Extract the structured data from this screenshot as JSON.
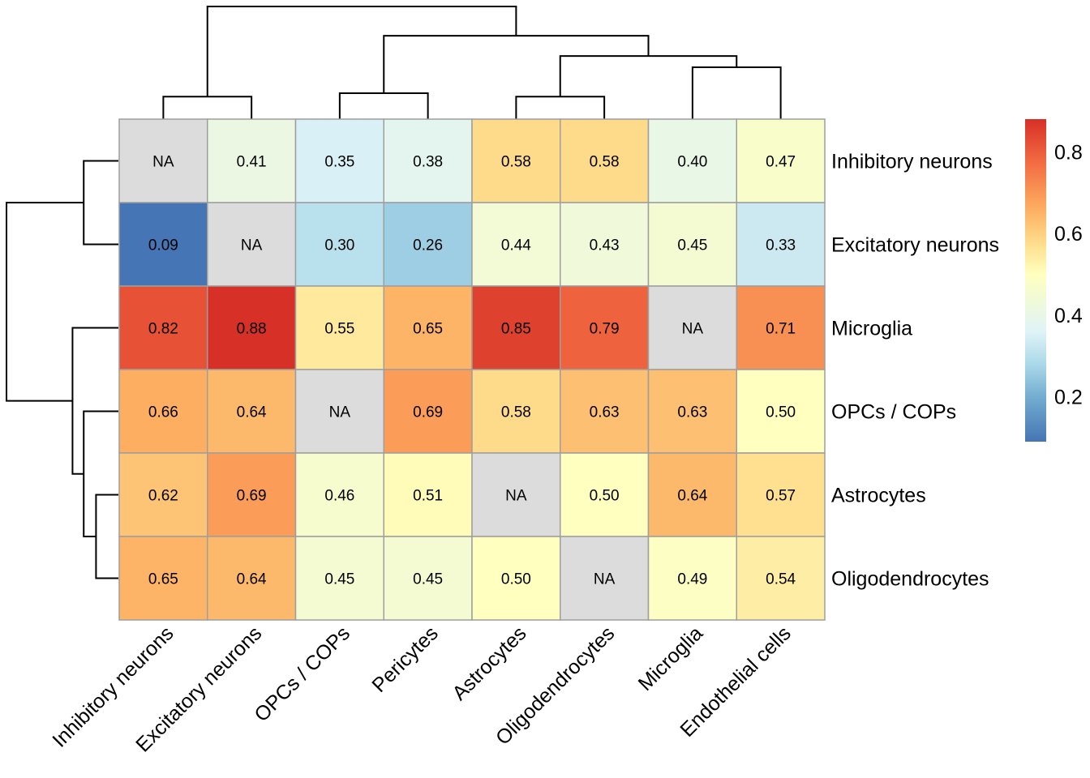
{
  "chart_data": {
    "type": "heatmap",
    "title": "",
    "columns": [
      "Inhibitory neurons",
      "Excitatory neurons",
      "OPCs / COPs",
      "Pericytes",
      "Astrocytes",
      "Oligodendrocytes",
      "Microglia",
      "Endothelial cells"
    ],
    "rows": [
      "Inhibitory neurons",
      "Excitatory neurons",
      "Microglia",
      "OPCs / COPs",
      "Astrocytes",
      "Oligodendrocytes"
    ],
    "values": [
      [
        null,
        0.41,
        0.35,
        0.38,
        0.58,
        0.58,
        0.4,
        0.47
      ],
      [
        0.09,
        null,
        0.3,
        0.26,
        0.44,
        0.43,
        0.45,
        0.33
      ],
      [
        0.82,
        0.88,
        0.55,
        0.65,
        0.85,
        0.79,
        null,
        0.71
      ],
      [
        0.66,
        0.64,
        null,
        0.69,
        0.58,
        0.63,
        0.63,
        0.5
      ],
      [
        0.62,
        0.69,
        0.46,
        0.51,
        null,
        0.5,
        0.64,
        0.57
      ],
      [
        0.65,
        0.64,
        0.45,
        0.45,
        0.5,
        null,
        0.49,
        0.54
      ]
    ],
    "cell_labels": [
      [
        "NA",
        "0.41",
        "0.35",
        "0.38",
        "0.58",
        "0.58",
        "0.40",
        "0.47"
      ],
      [
        "0.09",
        "NA",
        "0.30",
        "0.26",
        "0.44",
        "0.43",
        "0.45",
        "0.33"
      ],
      [
        "0.82",
        "0.88",
        "0.55",
        "0.65",
        "0.85",
        "0.79",
        "NA",
        "0.71"
      ],
      [
        "0.66",
        "0.64",
        "NA",
        "0.69",
        "0.58",
        "0.63",
        "0.63",
        "0.50"
      ],
      [
        "0.62",
        "0.69",
        "0.46",
        "0.51",
        "NA",
        "0.50",
        "0.64",
        "0.57"
      ],
      [
        "0.65",
        "0.64",
        "0.45",
        "0.45",
        "0.50",
        "NA",
        "0.49",
        "0.54"
      ]
    ],
    "na_label": "NA",
    "na_color": "#dcdcdc",
    "grid_color": "#9e9e9e",
    "colorscale": {
      "domain": [
        0.09,
        0.88
      ],
      "stops": [
        {
          "v": 0.09,
          "color": "#4575b4"
        },
        {
          "v": 0.2,
          "color": "#74add1"
        },
        {
          "v": 0.28,
          "color": "#abd9e9"
        },
        {
          "v": 0.36,
          "color": "#e0f3f8"
        },
        {
          "v": 0.45,
          "color": "#f4fbd2"
        },
        {
          "v": 0.5,
          "color": "#ffffbf"
        },
        {
          "v": 0.57,
          "color": "#fee090"
        },
        {
          "v": 0.66,
          "color": "#fdae61"
        },
        {
          "v": 0.77,
          "color": "#f46d43"
        },
        {
          "v": 0.88,
          "color": "#d73027"
        }
      ]
    },
    "legend": {
      "position": "right",
      "ticks": [
        0.2,
        0.4,
        0.6,
        0.8
      ],
      "tick_labels": [
        "0.2",
        "0.4",
        "0.6",
        "0.8"
      ]
    },
    "column_dendrogram": [
      [
        0,
        1,
        0.2
      ],
      [
        2,
        3,
        0.23
      ],
      [
        4,
        5,
        0.2
      ],
      [
        6,
        7,
        0.46
      ],
      [
        10,
        11,
        0.56
      ],
      [
        9,
        12,
        0.74
      ],
      [
        8,
        13,
        1.0
      ]
    ],
    "row_dendrogram": [
      [
        0,
        1,
        0.31
      ],
      [
        4,
        5,
        0.2
      ],
      [
        3,
        7,
        0.31
      ],
      [
        2,
        8,
        0.41
      ],
      [
        6,
        9,
        1.0
      ]
    ]
  }
}
